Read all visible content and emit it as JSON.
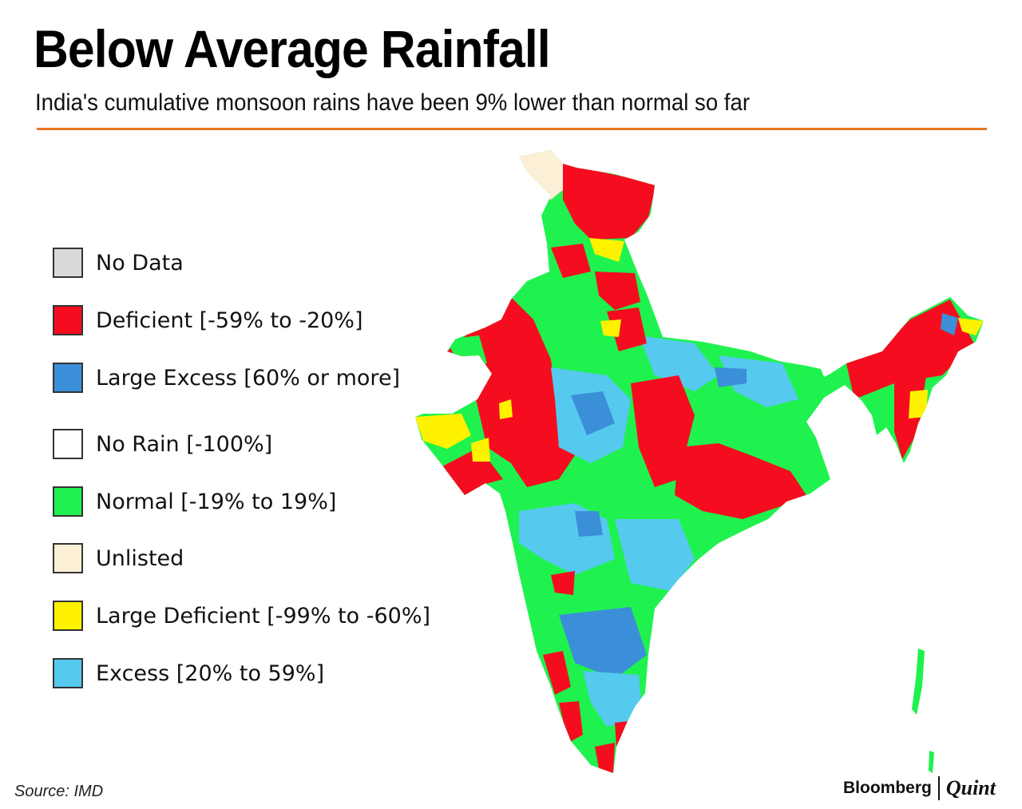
{
  "header": {
    "title": "Below Average Rainfall",
    "subtitle": "India's cumulative monsoon rains have been 9% lower than normal so far"
  },
  "legend": {
    "items": [
      {
        "label": "No Data",
        "color": "#d9d9d9"
      },
      {
        "label": "Deficient [-59% to -20%]",
        "color": "#f50d1f"
      },
      {
        "label": "Large Excess [60% or more]",
        "color": "#3b8fd8"
      },
      {
        "label": "No Rain [-100%]",
        "color": "#ffffff"
      },
      {
        "label": "Normal [-19% to 19%]",
        "color": "#1ff24e"
      },
      {
        "label": "Unlisted",
        "color": "#fbf0d6"
      },
      {
        "label": "Large Deficient [-99% to -60%]",
        "color": "#fff200"
      },
      {
        "label": "Excess [20% to 59%]",
        "color": "#55c9ee"
      }
    ]
  },
  "colors": {
    "accent_rule": "#e87722",
    "deficient": "#f50d1f",
    "normal": "#1ff24e",
    "excess": "#55c9ee",
    "large_excess": "#3b8fd8",
    "large_deficient": "#fff200",
    "unlisted": "#fbf0d6"
  },
  "footer": {
    "source": "Source: IMD",
    "brand_primary": "Bloomberg",
    "brand_secondary": "Quint"
  }
}
